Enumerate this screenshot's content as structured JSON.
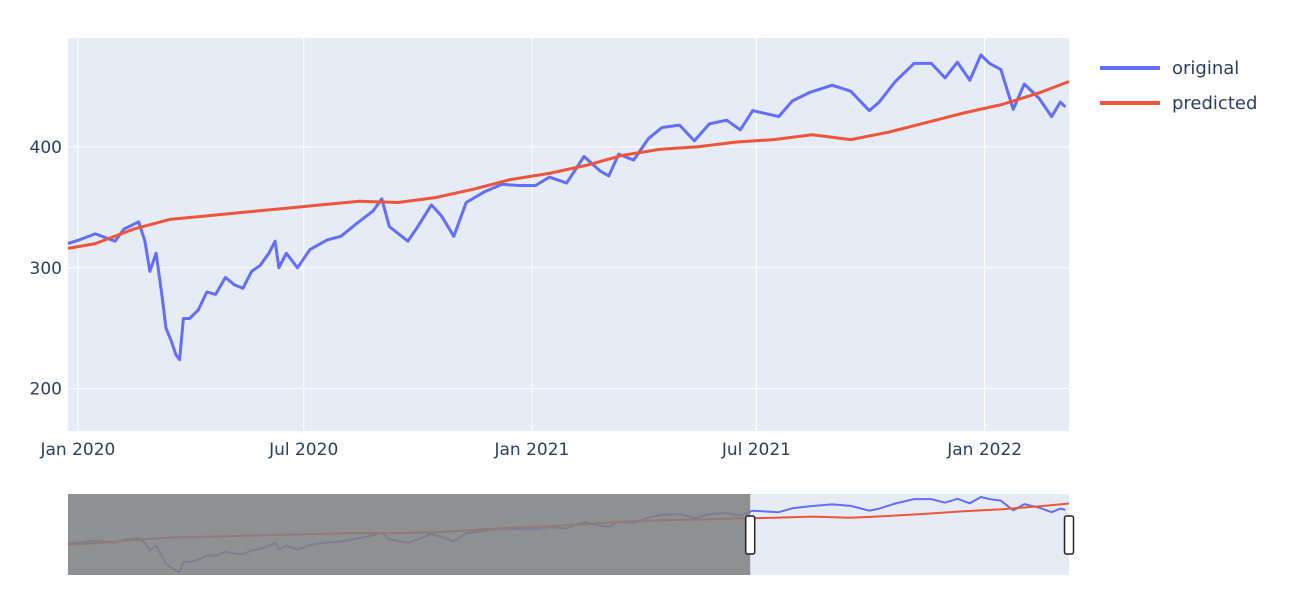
{
  "chart_data": {
    "type": "line",
    "x_axis_type": "date",
    "xlim": [
      "2019-12-24",
      "2022-03-10"
    ],
    "ylim": [
      165,
      490
    ],
    "x_tick_labels": [
      "Jan 2020",
      "Jul 2020",
      "Jan 2021",
      "Jul 2021",
      "Jan 2022"
    ],
    "x_tick_dates": [
      "2020-01-01",
      "2020-07-01",
      "2021-01-01",
      "2021-07-01",
      "2022-01-01"
    ],
    "y_ticks": [
      200,
      300,
      400
    ],
    "grid": true,
    "legend_position": "top-right",
    "rangeslider": {
      "visible": true,
      "range": [
        "2019-12-24",
        "2022-03-10"
      ],
      "unselected_until": "2021-06-26"
    },
    "series": [
      {
        "name": "original",
        "color": "#636efa",
        "points": [
          [
            "2019-12-24",
            320
          ],
          [
            "2020-01-02",
            323
          ],
          [
            "2020-01-15",
            328
          ],
          [
            "2020-01-31",
            322
          ],
          [
            "2020-02-07",
            332
          ],
          [
            "2020-02-19",
            338
          ],
          [
            "2020-02-24",
            322
          ],
          [
            "2020-02-28",
            297
          ],
          [
            "2020-03-04",
            312
          ],
          [
            "2020-03-09",
            275
          ],
          [
            "2020-03-12",
            250
          ],
          [
            "2020-03-16",
            240
          ],
          [
            "2020-03-20",
            228
          ],
          [
            "2020-03-23",
            224
          ],
          [
            "2020-03-26",
            258
          ],
          [
            "2020-03-31",
            258
          ],
          [
            "2020-04-07",
            265
          ],
          [
            "2020-04-14",
            280
          ],
          [
            "2020-04-21",
            278
          ],
          [
            "2020-04-29",
            292
          ],
          [
            "2020-05-06",
            286
          ],
          [
            "2020-05-13",
            283
          ],
          [
            "2020-05-20",
            297
          ],
          [
            "2020-05-27",
            302
          ],
          [
            "2020-06-03",
            312
          ],
          [
            "2020-06-08",
            322
          ],
          [
            "2020-06-11",
            300
          ],
          [
            "2020-06-17",
            312
          ],
          [
            "2020-06-26",
            300
          ],
          [
            "2020-07-06",
            315
          ],
          [
            "2020-07-20",
            323
          ],
          [
            "2020-07-31",
            326
          ],
          [
            "2020-08-12",
            336
          ],
          [
            "2020-08-26",
            347
          ],
          [
            "2020-09-02",
            357
          ],
          [
            "2020-09-08",
            334
          ],
          [
            "2020-09-23",
            322
          ],
          [
            "2020-10-01",
            334
          ],
          [
            "2020-10-12",
            352
          ],
          [
            "2020-10-20",
            343
          ],
          [
            "2020-10-30",
            326
          ],
          [
            "2020-11-09",
            354
          ],
          [
            "2020-11-24",
            363
          ],
          [
            "2020-12-08",
            369
          ],
          [
            "2020-12-21",
            368
          ],
          [
            "2021-01-04",
            368
          ],
          [
            "2021-01-15",
            375
          ],
          [
            "2021-01-29",
            370
          ],
          [
            "2021-02-12",
            392
          ],
          [
            "2021-02-25",
            380
          ],
          [
            "2021-03-04",
            376
          ],
          [
            "2021-03-12",
            394
          ],
          [
            "2021-03-24",
            389
          ],
          [
            "2021-04-05",
            407
          ],
          [
            "2021-04-16",
            416
          ],
          [
            "2021-04-30",
            418
          ],
          [
            "2021-05-12",
            405
          ],
          [
            "2021-05-24",
            419
          ],
          [
            "2021-06-07",
            422
          ],
          [
            "2021-06-18",
            414
          ],
          [
            "2021-06-28",
            430
          ],
          [
            "2021-07-19",
            425
          ],
          [
            "2021-07-30",
            438
          ],
          [
            "2021-08-13",
            445
          ],
          [
            "2021-08-31",
            451
          ],
          [
            "2021-09-15",
            446
          ],
          [
            "2021-09-30",
            430
          ],
          [
            "2021-10-08",
            437
          ],
          [
            "2021-10-21",
            454
          ],
          [
            "2021-11-05",
            469
          ],
          [
            "2021-11-19",
            469
          ],
          [
            "2021-11-30",
            457
          ],
          [
            "2021-12-10",
            470
          ],
          [
            "2021-12-20",
            455
          ],
          [
            "2021-12-29",
            476
          ],
          [
            "2022-01-05",
            469
          ],
          [
            "2022-01-14",
            464
          ],
          [
            "2022-01-24",
            431
          ],
          [
            "2022-02-02",
            452
          ],
          [
            "2022-02-14",
            440
          ],
          [
            "2022-02-24",
            425
          ],
          [
            "2022-03-03",
            437
          ],
          [
            "2022-03-07",
            433
          ]
        ]
      },
      {
        "name": "predicted",
        "color": "#ef553b",
        "points": [
          [
            "2019-12-24",
            316
          ],
          [
            "2020-01-15",
            320
          ],
          [
            "2020-02-15",
            332
          ],
          [
            "2020-03-15",
            340
          ],
          [
            "2020-04-15",
            343
          ],
          [
            "2020-05-15",
            346
          ],
          [
            "2020-06-15",
            349
          ],
          [
            "2020-07-15",
            352
          ],
          [
            "2020-08-15",
            355
          ],
          [
            "2020-09-15",
            354
          ],
          [
            "2020-10-15",
            358
          ],
          [
            "2020-11-15",
            365
          ],
          [
            "2020-12-15",
            373
          ],
          [
            "2021-01-15",
            378
          ],
          [
            "2021-02-15",
            385
          ],
          [
            "2021-03-15",
            393
          ],
          [
            "2021-04-15",
            398
          ],
          [
            "2021-05-15",
            400
          ],
          [
            "2021-06-15",
            404
          ],
          [
            "2021-07-15",
            406
          ],
          [
            "2021-08-15",
            410
          ],
          [
            "2021-09-15",
            406
          ],
          [
            "2021-10-15",
            412
          ],
          [
            "2021-11-15",
            420
          ],
          [
            "2021-12-15",
            428
          ],
          [
            "2022-01-15",
            435
          ],
          [
            "2022-02-15",
            445
          ],
          [
            "2022-03-10",
            454
          ]
        ]
      }
    ]
  }
}
